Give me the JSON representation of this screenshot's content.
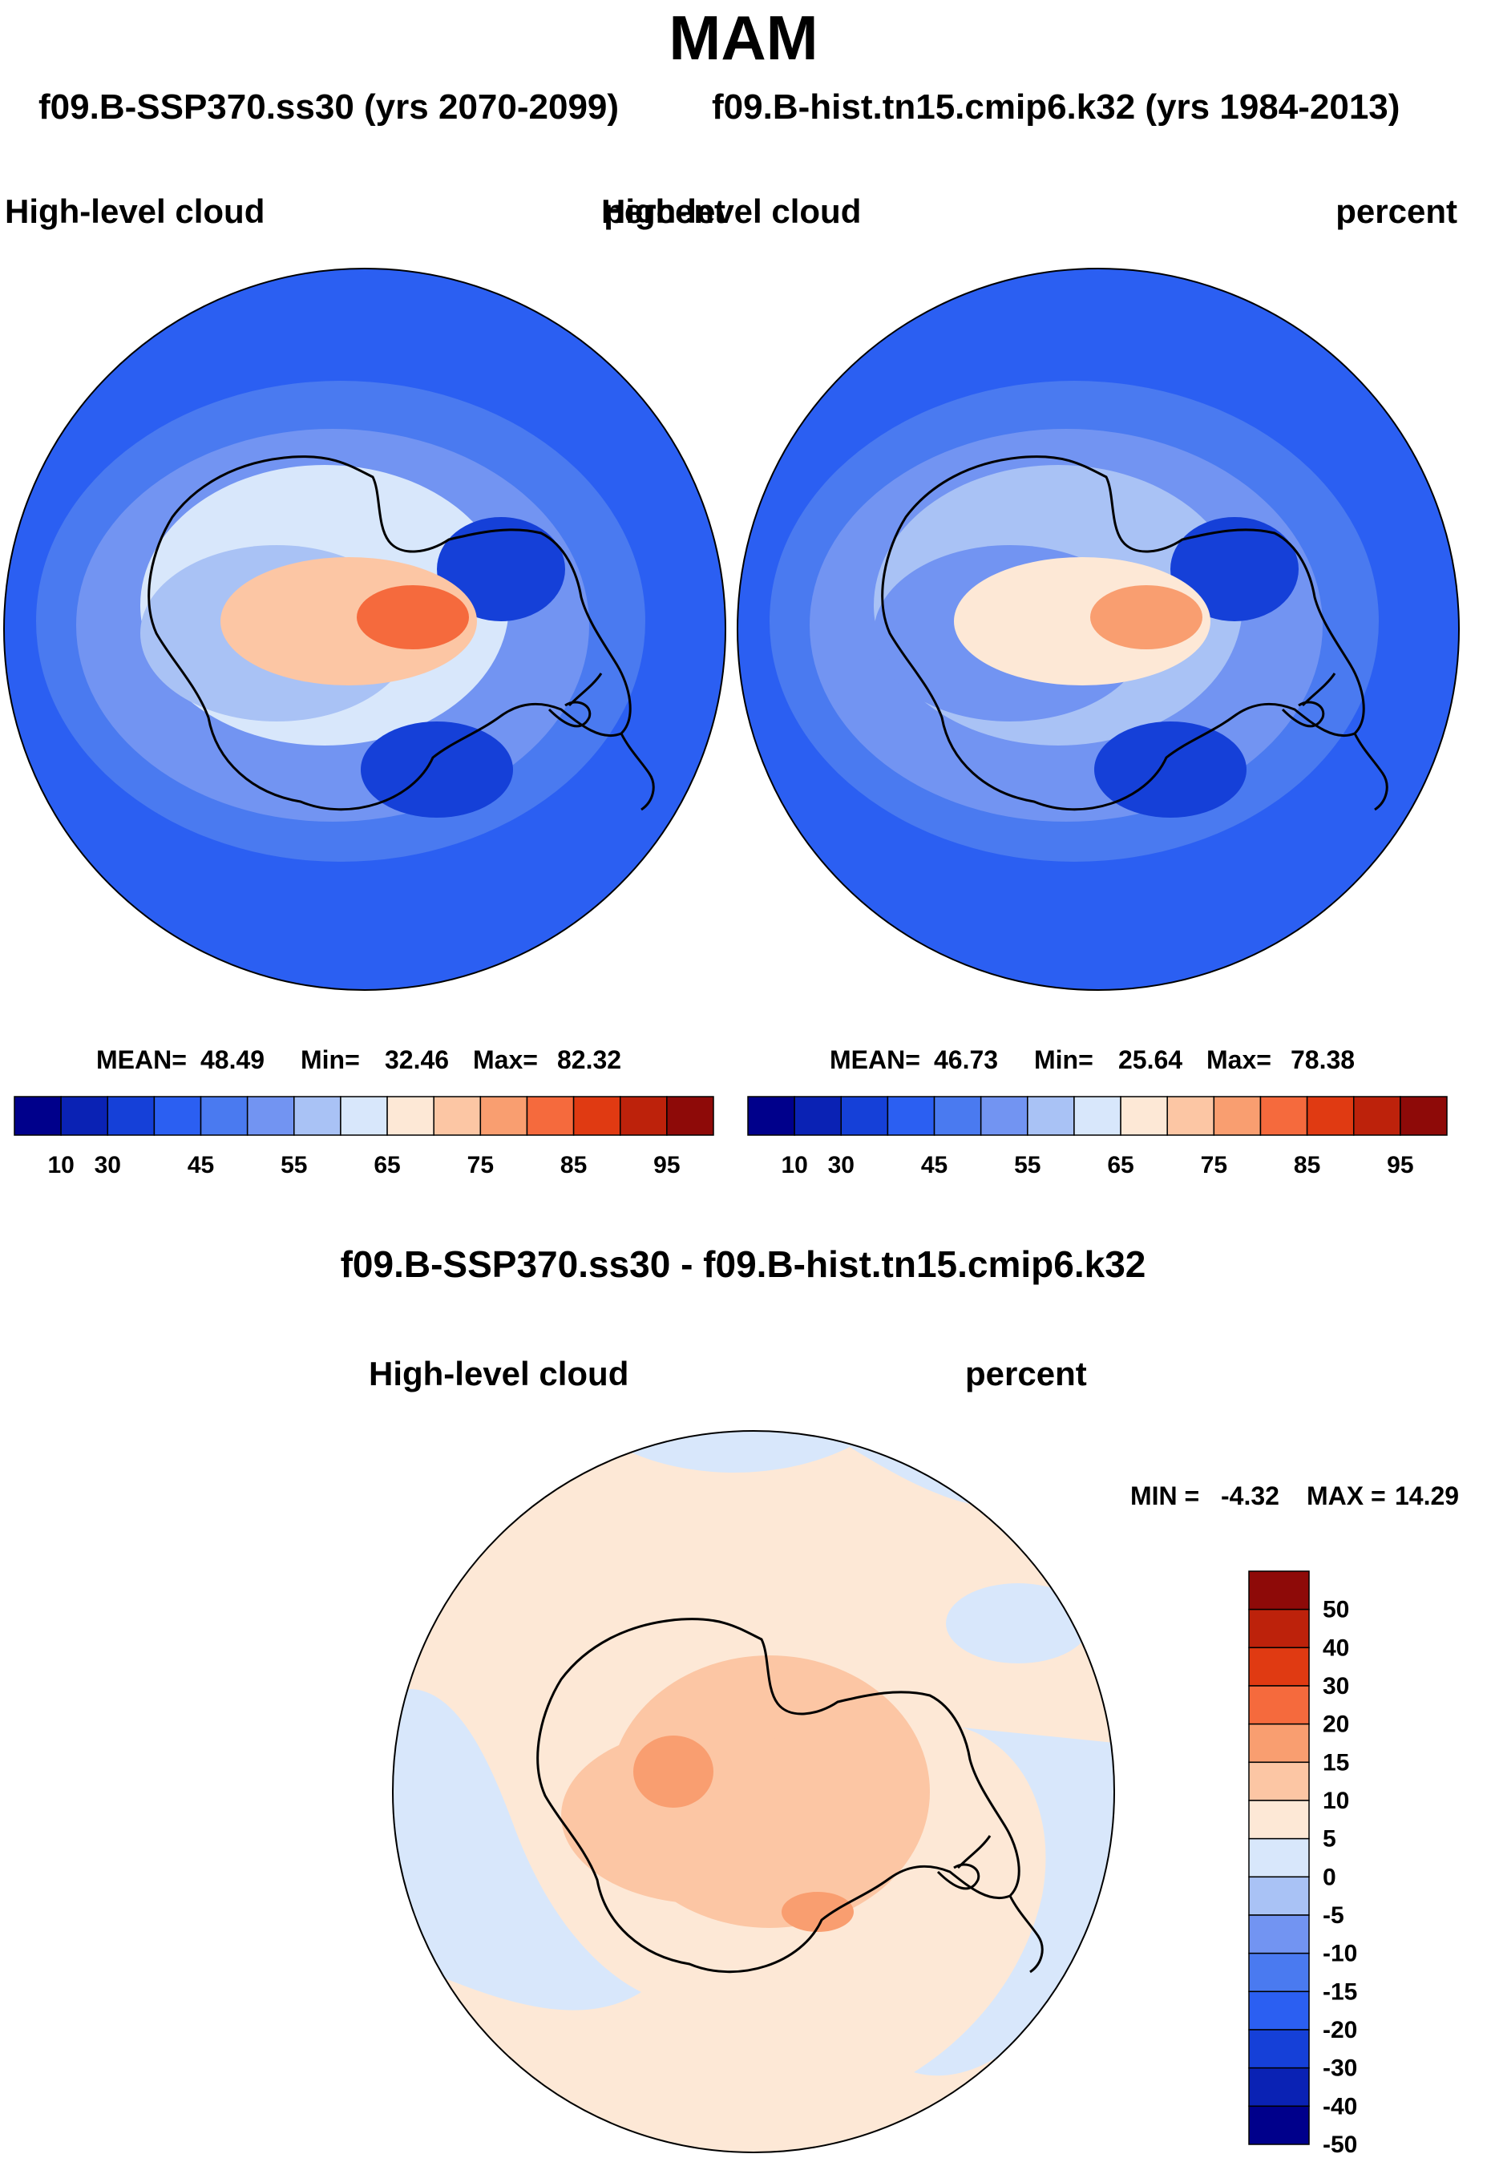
{
  "title": "MAM",
  "case_a": "f09.B-SSP370.ss30 (yrs 2070-2099)",
  "case_b": "f09.B-hist.tn15.cmip6.k32 (yrs 1984-2013)",
  "chart_data": [
    {
      "type": "heatmap",
      "projection": "south-polar-stereographic",
      "variable": "High-level cloud",
      "units": "percent",
      "stats": {
        "mean": "48.49",
        "min": "32.46",
        "max": "82.32"
      },
      "stats_text": {
        "mean_label": "MEAN=",
        "min_label": "Min=",
        "max_label": "Max="
      },
      "colorbar": {
        "levels": [
          10,
          20,
          30,
          40,
          45,
          50,
          55,
          60,
          65,
          70,
          75,
          80,
          85,
          90,
          95
        ],
        "tick_labels": [
          "10",
          "30",
          "45",
          "55",
          "65",
          "75",
          "85",
          "95"
        ],
        "colors": [
          "#00008b",
          "#0a22b4",
          "#1540d8",
          "#2b5ff2",
          "#4a7af0",
          "#7294f2",
          "#a9c2f5",
          "#d8e7fb",
          "#fde8d6",
          "#fcc6a4",
          "#f99e70",
          "#f56a3d",
          "#e03a12",
          "#bd220b",
          "#8e0a08"
        ]
      },
      "cloud_field": {
        "background": 40,
        "outer_ring": 45,
        "coast_ring": 50,
        "interior": 60,
        "ross_sector": 55,
        "wilkes_low": 35,
        "weddell_low": 35,
        "plateau_core": 80,
        "plateau": 70
      }
    },
    {
      "type": "heatmap",
      "projection": "south-polar-stereographic",
      "variable": "High-level cloud",
      "units": "percent",
      "stats": {
        "mean": "46.73",
        "min": "25.64",
        "max": "78.38"
      },
      "stats_text": {
        "mean_label": "MEAN=",
        "min_label": "Min=",
        "max_label": "Max="
      },
      "colorbar": {
        "levels": [
          10,
          20,
          30,
          40,
          45,
          50,
          55,
          60,
          65,
          70,
          75,
          80,
          85,
          90,
          95
        ],
        "tick_labels": [
          "10",
          "30",
          "45",
          "55",
          "65",
          "75",
          "85",
          "95"
        ],
        "colors": [
          "#00008b",
          "#0a22b4",
          "#1540d8",
          "#2b5ff2",
          "#4a7af0",
          "#7294f2",
          "#a9c2f5",
          "#d8e7fb",
          "#fde8d6",
          "#fcc6a4",
          "#f99e70",
          "#f56a3d",
          "#e03a12",
          "#bd220b",
          "#8e0a08"
        ]
      },
      "cloud_field": {
        "background": 40,
        "outer_ring": 45,
        "coast_ring": 50,
        "interior": 55,
        "ross_sector": 50,
        "wilkes_low": 30,
        "weddell_low": 30,
        "plateau_core": 75,
        "plateau": 65
      }
    },
    {
      "type": "heatmap",
      "projection": "south-polar-stereographic",
      "title": "f09.B-SSP370.ss30 - f09.B-hist.tn15.cmip6.k32",
      "variable": "High-level cloud",
      "units": "percent",
      "stats": {
        "min": "-4.32",
        "max": "14.29"
      },
      "stats_text": {
        "min_label": "MIN =",
        "max_label": "MAX ="
      },
      "colorbar": {
        "orientation": "vertical",
        "tick_labels": [
          "50",
          "40",
          "30",
          "20",
          "15",
          "10",
          "5",
          "0",
          "-5",
          "-10",
          "-15",
          "-20",
          "-30",
          "-40",
          "-50"
        ],
        "colors_top_to_bottom": [
          "#8e0a08",
          "#bd220b",
          "#e03a12",
          "#f56a3d",
          "#f99e70",
          "#fcc6a4",
          "#fde8d6",
          "#d8e7fb",
          "#a9c2f5",
          "#7294f2",
          "#4a7af0",
          "#2b5ff2",
          "#1540d8",
          "#0a22b4",
          "#00008b"
        ]
      },
      "diff_field": {
        "ocean": "0 to 5",
        "ocean_patches": "-5 to 0",
        "continent": "5 to 10",
        "peak": "10 to 15"
      }
    }
  ]
}
